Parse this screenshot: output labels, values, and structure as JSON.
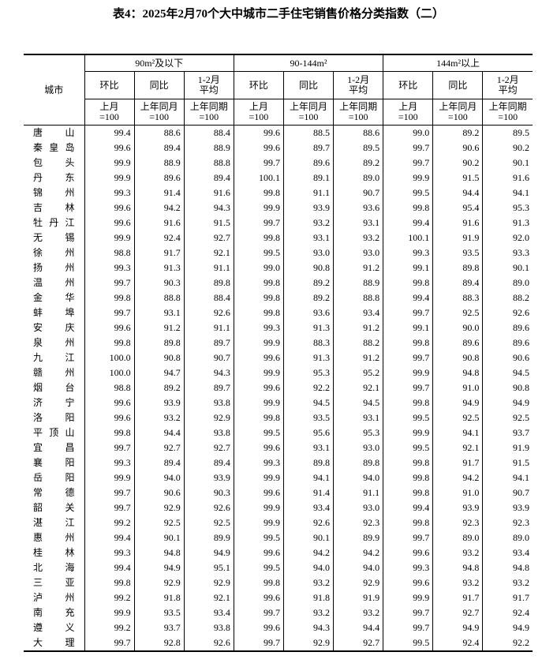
{
  "header": {
    "title": "表4：2025年2月70个大中城市二手住宅销售价格分类指数（二）"
  },
  "table": {
    "city_header": "城市",
    "groups": [
      "90m²及以下",
      "90-144m²",
      "144m²以上"
    ],
    "sub_headers": [
      "环比",
      "同比",
      "1-2月\n平均"
    ],
    "base_headers": [
      "上月\n=100",
      "上年同月\n=100",
      "上年同期\n=100"
    ],
    "rows": [
      [
        "唐山",
        "99.4",
        "88.6",
        "88.4",
        "99.6",
        "88.5",
        "88.6",
        "99.0",
        "89.2",
        "89.5"
      ],
      [
        "秦皇岛",
        "99.6",
        "89.4",
        "88.9",
        "99.6",
        "89.7",
        "89.5",
        "99.7",
        "90.6",
        "90.2"
      ],
      [
        "包头",
        "99.9",
        "88.9",
        "88.8",
        "99.7",
        "89.6",
        "89.2",
        "99.7",
        "90.2",
        "90.1"
      ],
      [
        "丹东",
        "99.9",
        "89.6",
        "89.4",
        "100.1",
        "89.1",
        "89.0",
        "99.9",
        "91.5",
        "91.6"
      ],
      [
        "锦州",
        "99.3",
        "91.4",
        "91.6",
        "99.8",
        "91.1",
        "90.7",
        "99.5",
        "94.4",
        "94.1"
      ],
      [
        "吉林",
        "99.6",
        "94.2",
        "94.3",
        "99.9",
        "93.9",
        "93.6",
        "99.8",
        "95.4",
        "95.3"
      ],
      [
        "牡丹江",
        "99.6",
        "91.6",
        "91.5",
        "99.7",
        "93.2",
        "93.1",
        "99.4",
        "91.6",
        "91.3"
      ],
      [
        "无锡",
        "99.9",
        "92.4",
        "92.7",
        "99.8",
        "93.1",
        "93.2",
        "100.1",
        "91.9",
        "92.0"
      ],
      [
        "徐州",
        "98.8",
        "91.7",
        "92.1",
        "99.5",
        "93.0",
        "93.0",
        "99.3",
        "93.5",
        "93.3"
      ],
      [
        "扬州",
        "99.3",
        "91.3",
        "91.1",
        "99.0",
        "90.8",
        "91.2",
        "99.1",
        "89.8",
        "90.1"
      ],
      [
        "温州",
        "99.7",
        "90.3",
        "89.8",
        "99.8",
        "89.2",
        "88.9",
        "99.8",
        "89.4",
        "89.0"
      ],
      [
        "金华",
        "99.8",
        "88.8",
        "88.4",
        "99.8",
        "89.2",
        "88.8",
        "99.4",
        "88.3",
        "88.2"
      ],
      [
        "蚌埠",
        "99.7",
        "93.1",
        "92.6",
        "99.8",
        "93.6",
        "93.4",
        "99.7",
        "92.5",
        "92.6"
      ],
      [
        "安庆",
        "99.6",
        "91.2",
        "91.1",
        "99.3",
        "91.3",
        "91.2",
        "99.1",
        "90.0",
        "89.6"
      ],
      [
        "泉州",
        "99.8",
        "89.8",
        "89.7",
        "99.9",
        "88.3",
        "88.2",
        "99.8",
        "89.6",
        "89.6"
      ],
      [
        "九江",
        "100.0",
        "90.8",
        "90.7",
        "99.6",
        "91.3",
        "91.2",
        "99.7",
        "90.8",
        "90.6"
      ],
      [
        "赣州",
        "100.0",
        "94.7",
        "94.3",
        "99.9",
        "95.3",
        "95.2",
        "99.9",
        "94.8",
        "94.5"
      ],
      [
        "烟台",
        "98.8",
        "89.2",
        "89.7",
        "99.6",
        "92.2",
        "92.1",
        "99.7",
        "91.0",
        "90.8"
      ],
      [
        "济宁",
        "99.6",
        "93.9",
        "93.8",
        "99.9",
        "94.5",
        "94.5",
        "99.8",
        "94.9",
        "94.9"
      ],
      [
        "洛阳",
        "99.6",
        "93.2",
        "92.9",
        "99.8",
        "93.5",
        "93.1",
        "99.5",
        "92.5",
        "92.5"
      ],
      [
        "平顶山",
        "99.8",
        "94.4",
        "93.8",
        "99.5",
        "95.6",
        "95.3",
        "99.9",
        "94.1",
        "93.7"
      ],
      [
        "宜昌",
        "99.7",
        "92.7",
        "92.7",
        "99.6",
        "93.1",
        "93.0",
        "99.5",
        "92.1",
        "91.9"
      ],
      [
        "襄阳",
        "99.3",
        "89.4",
        "89.4",
        "99.3",
        "89.8",
        "89.8",
        "99.8",
        "91.7",
        "91.5"
      ],
      [
        "岳阳",
        "99.9",
        "94.0",
        "93.9",
        "99.9",
        "94.1",
        "94.0",
        "99.8",
        "94.2",
        "94.1"
      ],
      [
        "常德",
        "99.7",
        "90.6",
        "90.3",
        "99.6",
        "91.4",
        "91.1",
        "99.8",
        "91.0",
        "90.7"
      ],
      [
        "韶关",
        "99.7",
        "92.9",
        "92.6",
        "99.9",
        "93.4",
        "93.0",
        "99.4",
        "93.9",
        "93.9"
      ],
      [
        "湛江",
        "99.2",
        "92.5",
        "92.5",
        "99.9",
        "92.6",
        "92.3",
        "99.8",
        "92.3",
        "92.3"
      ],
      [
        "惠州",
        "99.4",
        "90.1",
        "89.9",
        "99.5",
        "90.1",
        "89.9",
        "99.7",
        "89.0",
        "89.0"
      ],
      [
        "桂林",
        "99.3",
        "94.8",
        "94.9",
        "99.6",
        "94.2",
        "94.2",
        "99.6",
        "93.2",
        "93.4"
      ],
      [
        "北海",
        "99.4",
        "94.9",
        "95.1",
        "99.5",
        "94.0",
        "94.0",
        "99.3",
        "94.8",
        "94.8"
      ],
      [
        "三亚",
        "99.8",
        "92.9",
        "92.9",
        "99.8",
        "93.2",
        "92.9",
        "99.6",
        "93.2",
        "93.2"
      ],
      [
        "泸州",
        "99.2",
        "91.8",
        "92.1",
        "99.6",
        "91.8",
        "91.9",
        "99.9",
        "91.7",
        "91.7"
      ],
      [
        "南充",
        "99.9",
        "93.5",
        "93.4",
        "99.7",
        "93.2",
        "93.2",
        "99.7",
        "92.7",
        "92.4"
      ],
      [
        "遵义",
        "99.2",
        "93.7",
        "93.8",
        "99.6",
        "94.3",
        "94.4",
        "99.7",
        "94.9",
        "94.9"
      ],
      [
        "大理",
        "99.7",
        "92.8",
        "92.6",
        "99.7",
        "92.9",
        "92.7",
        "99.5",
        "92.4",
        "92.2"
      ]
    ]
  }
}
